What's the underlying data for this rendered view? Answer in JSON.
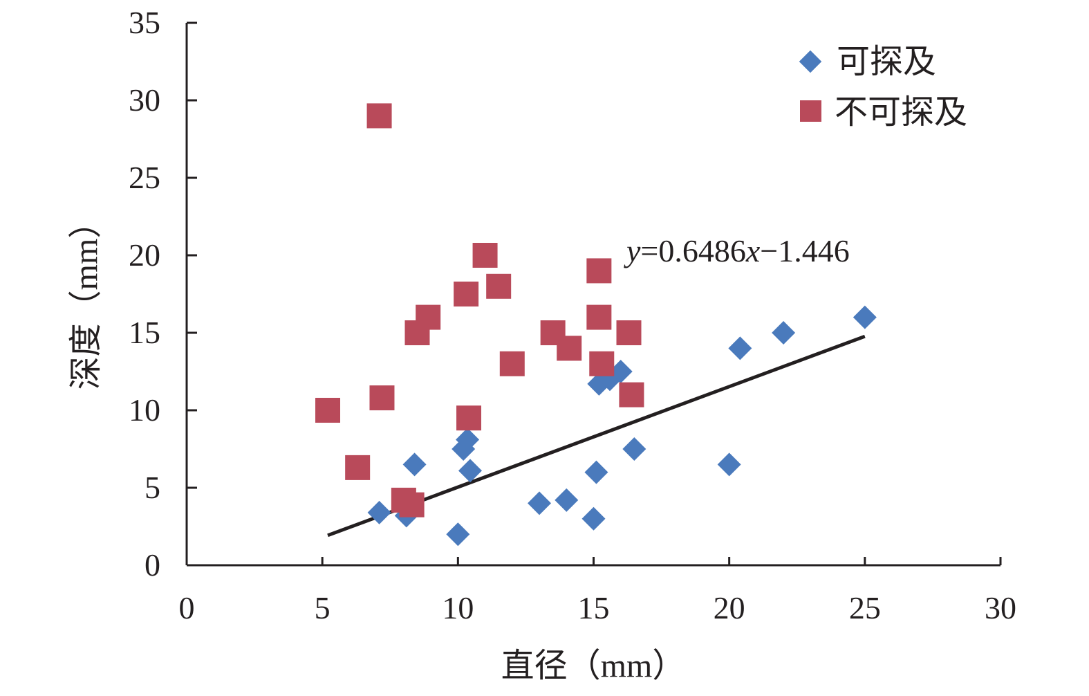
{
  "chart_data": {
    "type": "scatter",
    "xlabel": "直径（mm）",
    "ylabel": "深度（mm）",
    "xlim": [
      0,
      30
    ],
    "ylim": [
      0,
      35
    ],
    "x_ticks": [
      "0",
      "5",
      "10",
      "15",
      "20",
      "25",
      "30"
    ],
    "y_ticks": [
      "0",
      "5",
      "10",
      "15",
      "20",
      "25",
      "30",
      "35"
    ],
    "grid": false,
    "legend_position": "top-right",
    "series": [
      {
        "name": "可探及",
        "marker": "diamond",
        "color": "#4a7abc",
        "points": [
          [
            7.1,
            3.4
          ],
          [
            8.1,
            3.2
          ],
          [
            8.4,
            6.5
          ],
          [
            10.0,
            2.0
          ],
          [
            10.2,
            7.5
          ],
          [
            10.35,
            8.1
          ],
          [
            10.45,
            6.1
          ],
          [
            13.0,
            4.0
          ],
          [
            14.0,
            4.2
          ],
          [
            15.0,
            3.0
          ],
          [
            15.1,
            6.0
          ],
          [
            15.2,
            11.7
          ],
          [
            15.6,
            12.0
          ],
          [
            16.0,
            12.5
          ],
          [
            16.5,
            7.5
          ],
          [
            20.0,
            6.5
          ],
          [
            20.4,
            14.0
          ],
          [
            22.0,
            15.0
          ],
          [
            25.0,
            16.0
          ]
        ]
      },
      {
        "name": "不可探及",
        "marker": "square",
        "color": "#b94a5a",
        "points": [
          [
            5.2,
            10.0
          ],
          [
            6.3,
            6.3
          ],
          [
            7.1,
            29.0
          ],
          [
            7.2,
            10.8
          ],
          [
            8.0,
            4.2
          ],
          [
            8.3,
            3.9
          ],
          [
            8.5,
            15.0
          ],
          [
            8.9,
            16.0
          ],
          [
            10.3,
            17.5
          ],
          [
            10.4,
            9.5
          ],
          [
            11.0,
            20.0
          ],
          [
            11.5,
            18.0
          ],
          [
            12.0,
            13.0
          ],
          [
            13.5,
            15.0
          ],
          [
            14.1,
            14.0
          ],
          [
            15.2,
            19.0
          ],
          [
            15.2,
            16.0
          ],
          [
            15.3,
            13.0
          ],
          [
            16.3,
            15.0
          ],
          [
            16.4,
            11.0
          ]
        ]
      }
    ],
    "trendline": {
      "equation": {
        "y": "y",
        "rest": "=0.6486",
        "x": "x",
        "tail": "−1.446"
      },
      "slope": 0.6486,
      "intercept": -1.446,
      "x_range": [
        5.2,
        25.0
      ],
      "color": "#231f20"
    }
  }
}
